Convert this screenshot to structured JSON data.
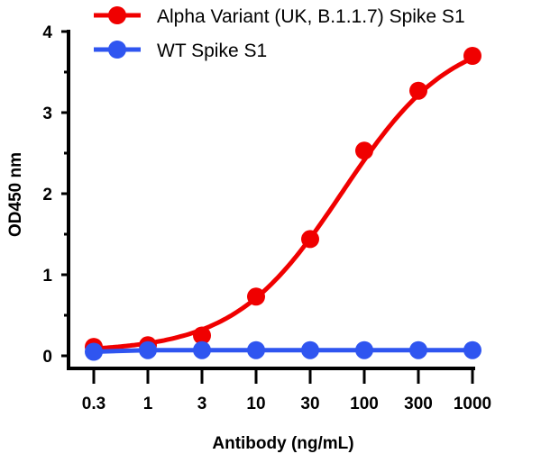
{
  "chart_data": {
    "type": "line",
    "title": "",
    "xlabel": "Antibody (ng/mL)",
    "ylabel": "OD450 nm",
    "categories": [
      "0.3",
      "1",
      "3",
      "10",
      "30",
      "100",
      "300",
      "1000"
    ],
    "x_scale": "log (evenly spaced categories)",
    "ylim": [
      0,
      4
    ],
    "yticks": [
      "0",
      "1",
      "2",
      "3",
      "4"
    ],
    "grid": false,
    "legend_position": "top",
    "series": [
      {
        "name": "Alpha Variant (UK, B.1.1.7) Spike S1",
        "color": "#f00000",
        "values": [
          0.11,
          0.13,
          0.25,
          0.73,
          1.44,
          2.53,
          3.27,
          3.7
        ],
        "fit": "sigmoidal curve"
      },
      {
        "name": "WT Spike S1",
        "color": "#2f55f0",
        "values": [
          0.05,
          0.07,
          0.07,
          0.07,
          0.07,
          0.07,
          0.07,
          0.07
        ],
        "fit": "straight line"
      }
    ]
  }
}
